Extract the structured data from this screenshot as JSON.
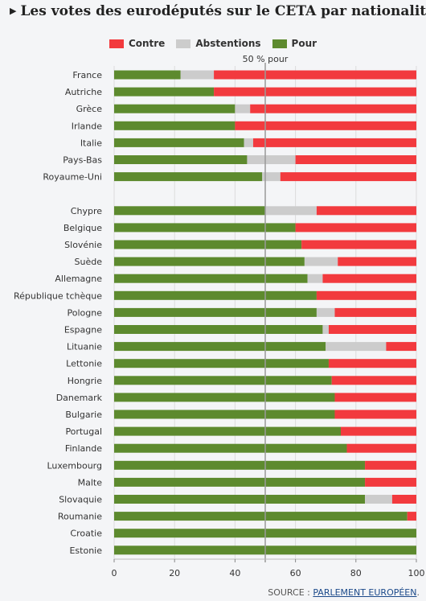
{
  "title": "Les votes des eurodéputés sur le CETA par nationalité",
  "title_marker": "▶",
  "legend": {
    "contre": "Contre",
    "abstentions": "Abstentions",
    "pour": "Pour"
  },
  "reference_label": "50 % pour",
  "source": {
    "prefix": "SOURCE : ",
    "link": "PARLEMENT EUROPÉEN",
    "suffix": "."
  },
  "colors": {
    "pour": "#5d8a2e",
    "abstentions": "#cccccc",
    "contre": "#f23a3e"
  },
  "chart_data": {
    "type": "bar",
    "orientation": "horizontal",
    "stacked": true,
    "xlim": [
      0,
      100
    ],
    "xticks": [
      0,
      20,
      40,
      60,
      80,
      100
    ],
    "reference_line": 50,
    "grid": true,
    "legend_position": "top-center",
    "groups": [
      [
        {
          "country": "France",
          "pour": 22,
          "abstentions": 11,
          "contre": 67
        },
        {
          "country": "Autriche",
          "pour": 33,
          "abstentions": 0,
          "contre": 67
        },
        {
          "country": "Grèce",
          "pour": 40,
          "abstentions": 5,
          "contre": 55
        },
        {
          "country": "Irlande",
          "pour": 40,
          "abstentions": 0,
          "contre": 60
        },
        {
          "country": "Italie",
          "pour": 43,
          "abstentions": 3,
          "contre": 54
        },
        {
          "country": "Pays-Bas",
          "pour": 44,
          "abstentions": 16,
          "contre": 40
        },
        {
          "country": "Royaume-Uni",
          "pour": 49,
          "abstentions": 6,
          "contre": 45
        }
      ],
      [
        {
          "country": "Chypre",
          "pour": 50,
          "abstentions": 17,
          "contre": 33
        },
        {
          "country": "Belgique",
          "pour": 60,
          "abstentions": 0,
          "contre": 40
        },
        {
          "country": "Slovénie",
          "pour": 62,
          "abstentions": 0,
          "contre": 38
        },
        {
          "country": "Suède",
          "pour": 63,
          "abstentions": 11,
          "contre": 26
        },
        {
          "country": "Allemagne",
          "pour": 64,
          "abstentions": 5,
          "contre": 31
        },
        {
          "country": "République tchèque",
          "pour": 67,
          "abstentions": 0,
          "contre": 33
        },
        {
          "country": "Pologne",
          "pour": 67,
          "abstentions": 6,
          "contre": 27
        },
        {
          "country": "Espagne",
          "pour": 69,
          "abstentions": 2,
          "contre": 29
        },
        {
          "country": "Lituanie",
          "pour": 70,
          "abstentions": 20,
          "contre": 10
        },
        {
          "country": "Lettonie",
          "pour": 71,
          "abstentions": 0,
          "contre": 29
        },
        {
          "country": "Hongrie",
          "pour": 72,
          "abstentions": 0,
          "contre": 28
        },
        {
          "country": "Danemark",
          "pour": 73,
          "abstentions": 0,
          "contre": 27
        },
        {
          "country": "Bulgarie",
          "pour": 73,
          "abstentions": 0,
          "contre": 27
        },
        {
          "country": "Portugal",
          "pour": 75,
          "abstentions": 0,
          "contre": 25
        },
        {
          "country": "Finlande",
          "pour": 77,
          "abstentions": 0,
          "contre": 23
        },
        {
          "country": "Luxembourg",
          "pour": 83,
          "abstentions": 0,
          "contre": 17
        },
        {
          "country": "Malte",
          "pour": 83,
          "abstentions": 0,
          "contre": 17
        },
        {
          "country": "Slovaquie",
          "pour": 83,
          "abstentions": 9,
          "contre": 8
        },
        {
          "country": "Roumanie",
          "pour": 97,
          "abstentions": 0,
          "contre": 3
        },
        {
          "country": "Croatie",
          "pour": 100,
          "abstentions": 0,
          "contre": 0
        },
        {
          "country": "Estonie",
          "pour": 100,
          "abstentions": 0,
          "contre": 0
        }
      ]
    ]
  }
}
